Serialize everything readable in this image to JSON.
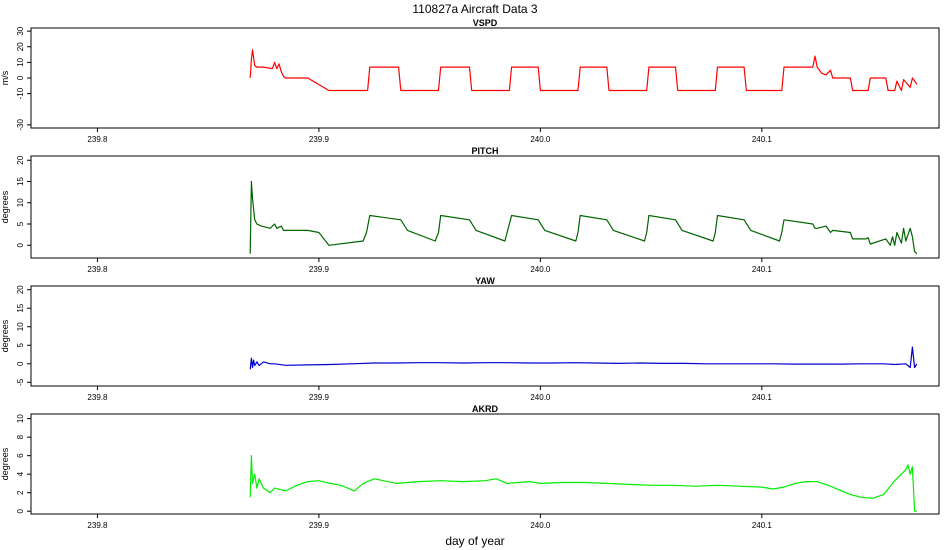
{
  "main_title": "110827a   Aircraft Data 3",
  "x_axis_label": "day of year",
  "chart_data": [
    {
      "type": "line",
      "title": "VSPD",
      "ylabel": "m/s",
      "color": "#ff0000",
      "xlim": [
        239.77,
        240.18
      ],
      "ylim": [
        -32,
        32
      ],
      "xticks": [
        "239.8",
        "239.9",
        "240.0",
        "240.1"
      ],
      "yticks": [
        "-30",
        "-10",
        "0",
        "10",
        "20",
        "30"
      ],
      "series": [
        {
          "x": [
            239.869,
            239.8695,
            239.87,
            239.871,
            239.872,
            239.875,
            239.879,
            239.88,
            239.881,
            239.882,
            239.883,
            239.884,
            239.885,
            239.895,
            239.9045,
            239.922,
            239.923,
            239.936,
            239.937,
            239.954,
            239.955,
            239.968,
            239.969,
            239.986,
            239.987,
            239.999,
            240.0,
            240.017,
            240.018,
            240.03,
            240.031,
            240.048,
            240.049,
            240.061,
            240.062,
            240.079,
            240.08,
            240.092,
            240.093,
            240.109,
            240.11,
            240.123,
            240.124,
            240.125,
            240.127,
            240.129,
            240.131,
            240.132,
            240.14,
            240.141,
            240.148,
            240.149,
            240.156,
            240.157,
            240.16,
            240.161,
            240.163,
            240.164,
            240.167,
            240.168,
            240.17
          ],
          "y": [
            0,
            12,
            18,
            8,
            7,
            7,
            6,
            10,
            6,
            9,
            4,
            1,
            0,
            0,
            -8,
            -8,
            7,
            7,
            -8,
            -8,
            7,
            7,
            -8,
            -8,
            7,
            7,
            -8,
            -8,
            7,
            7,
            -8,
            -8,
            7,
            7,
            -8,
            -8,
            7,
            7,
            -8,
            -8,
            7,
            7,
            14,
            7,
            3,
            2,
            5,
            0,
            0,
            -8,
            -8,
            0,
            0,
            -8,
            -8,
            -2,
            -8,
            -1,
            -6,
            0,
            -4
          ]
        }
      ]
    },
    {
      "type": "line",
      "title": "PITCH",
      "ylabel": "degrees",
      "color": "#006400",
      "xlim": [
        239.77,
        240.18
      ],
      "ylim": [
        -3,
        21
      ],
      "xticks": [
        "239.8",
        "239.9",
        "240.0",
        "240.1"
      ],
      "yticks": [
        "0",
        "5",
        "10",
        "15",
        "20"
      ],
      "series": [
        {
          "x": [
            239.869,
            239.8695,
            239.87,
            239.871,
            239.872,
            239.874,
            239.878,
            239.88,
            239.881,
            239.883,
            239.884,
            239.885,
            239.895,
            239.9,
            239.9045,
            239.92,
            239.9215,
            239.923,
            239.937,
            239.94,
            239.9525,
            239.954,
            239.955,
            239.968,
            239.971,
            239.984,
            239.985,
            239.987,
            239.999,
            240.002,
            240.016,
            240.017,
            240.018,
            240.03,
            240.033,
            240.047,
            240.048,
            240.049,
            240.061,
            240.064,
            240.078,
            240.079,
            240.08,
            240.092,
            240.095,
            240.108,
            240.109,
            240.11,
            240.123,
            240.124,
            240.125,
            240.129,
            240.131,
            240.132,
            240.14,
            240.141,
            240.147,
            240.148,
            240.149,
            240.156,
            240.158,
            240.159,
            240.16,
            240.161,
            240.163,
            240.164,
            240.165,
            240.167,
            240.168,
            240.169,
            240.17
          ],
          "y": [
            -2,
            15,
            11,
            6,
            5,
            4.5,
            4,
            5,
            4,
            4.5,
            3.5,
            3.5,
            3.5,
            3,
            0,
            1,
            3,
            7,
            6,
            3.5,
            1,
            3,
            7,
            6,
            3.5,
            1,
            3,
            7,
            6,
            3.5,
            1,
            3,
            7,
            6,
            3.5,
            1,
            3,
            7,
            6,
            3.5,
            1,
            3,
            7,
            6,
            3.5,
            1,
            3,
            6,
            5,
            4,
            4,
            4.5,
            3,
            3.5,
            3,
            1.5,
            1.5,
            1.8,
            0.3,
            1.5,
            0,
            2,
            0,
            3,
            0.5,
            4,
            1,
            4,
            2,
            -1.5,
            -2
          ]
        }
      ]
    },
    {
      "type": "line",
      "title": "YAW",
      "ylabel": "degrees",
      "color": "#0000cd",
      "xlim": [
        239.77,
        240.18
      ],
      "ylim": [
        -6,
        21
      ],
      "xticks": [
        "239.8",
        "239.9",
        "240.0",
        "240.1"
      ],
      "yticks": [
        "-5",
        "0",
        "5",
        "10",
        "15",
        "20"
      ],
      "series": [
        {
          "x": [
            239.869,
            239.8695,
            239.87,
            239.8705,
            239.871,
            239.872,
            239.873,
            239.875,
            239.878,
            239.88,
            239.885,
            239.895,
            239.905,
            239.915,
            239.925,
            239.935,
            239.945,
            239.955,
            239.965,
            239.975,
            239.985,
            239.995,
            240.005,
            240.015,
            240.025,
            240.035,
            240.045,
            240.055,
            240.065,
            240.075,
            240.085,
            240.095,
            240.105,
            240.115,
            240.125,
            240.135,
            240.145,
            240.155,
            240.16,
            240.165,
            240.167,
            240.168,
            240.169,
            240.17
          ],
          "y": [
            -1.5,
            1.5,
            -1,
            1,
            -0.5,
            0.5,
            -0.5,
            0.5,
            0,
            0,
            -0.4,
            -0.3,
            -0.2,
            0,
            0.2,
            0.2,
            0.3,
            0.3,
            0.2,
            0.3,
            0.3,
            0.2,
            0.2,
            0.3,
            0.2,
            0.1,
            0.2,
            0.1,
            0.1,
            0,
            0,
            0,
            0,
            -0.1,
            -0.1,
            -0.1,
            0,
            0,
            -0.2,
            0,
            -1,
            4.5,
            -1,
            0
          ]
        }
      ]
    },
    {
      "type": "line",
      "title": "AKRD",
      "ylabel": "degrees",
      "color": "#00ee00",
      "xlim": [
        239.77,
        240.18
      ],
      "ylim": [
        -0.3,
        10.5
      ],
      "xticks": [
        "239.8",
        "239.9",
        "240.0",
        "240.1"
      ],
      "yticks": [
        "0",
        "2",
        "4",
        "6",
        "8",
        "10"
      ],
      "series": [
        {
          "x": [
            239.869,
            239.8695,
            239.87,
            239.871,
            239.872,
            239.873,
            239.875,
            239.878,
            239.88,
            239.885,
            239.89,
            239.895,
            239.9,
            239.905,
            239.91,
            239.913,
            239.916,
            239.92,
            239.925,
            239.935,
            239.945,
            239.955,
            239.965,
            239.975,
            239.98,
            239.985,
            239.99,
            239.995,
            240.0,
            240.01,
            240.02,
            240.03,
            240.04,
            240.05,
            240.06,
            240.07,
            240.08,
            240.09,
            240.1,
            240.105,
            240.11,
            240.115,
            240.12,
            240.125,
            240.13,
            240.135,
            240.14,
            240.145,
            240.15,
            240.155,
            240.16,
            240.163,
            240.165,
            240.166,
            240.167,
            240.168,
            240.169,
            240.17
          ],
          "y": [
            1.5,
            6,
            3,
            4,
            2.5,
            3.5,
            2.5,
            2,
            2.5,
            2.2,
            2.8,
            3.2,
            3.3,
            3,
            2.8,
            2.5,
            2.2,
            3,
            3.5,
            3,
            3.2,
            3.3,
            3.2,
            3.3,
            3.5,
            3,
            3.1,
            3.2,
            3,
            3.1,
            3.1,
            3,
            2.9,
            2.8,
            2.8,
            2.7,
            2.8,
            2.7,
            2.6,
            2.4,
            2.6,
            3.0,
            3.2,
            3.2,
            2.8,
            2.3,
            1.8,
            1.5,
            1.4,
            1.8,
            3.3,
            4.0,
            4.5,
            5,
            4,
            4.8,
            0,
            0
          ]
        }
      ]
    }
  ]
}
